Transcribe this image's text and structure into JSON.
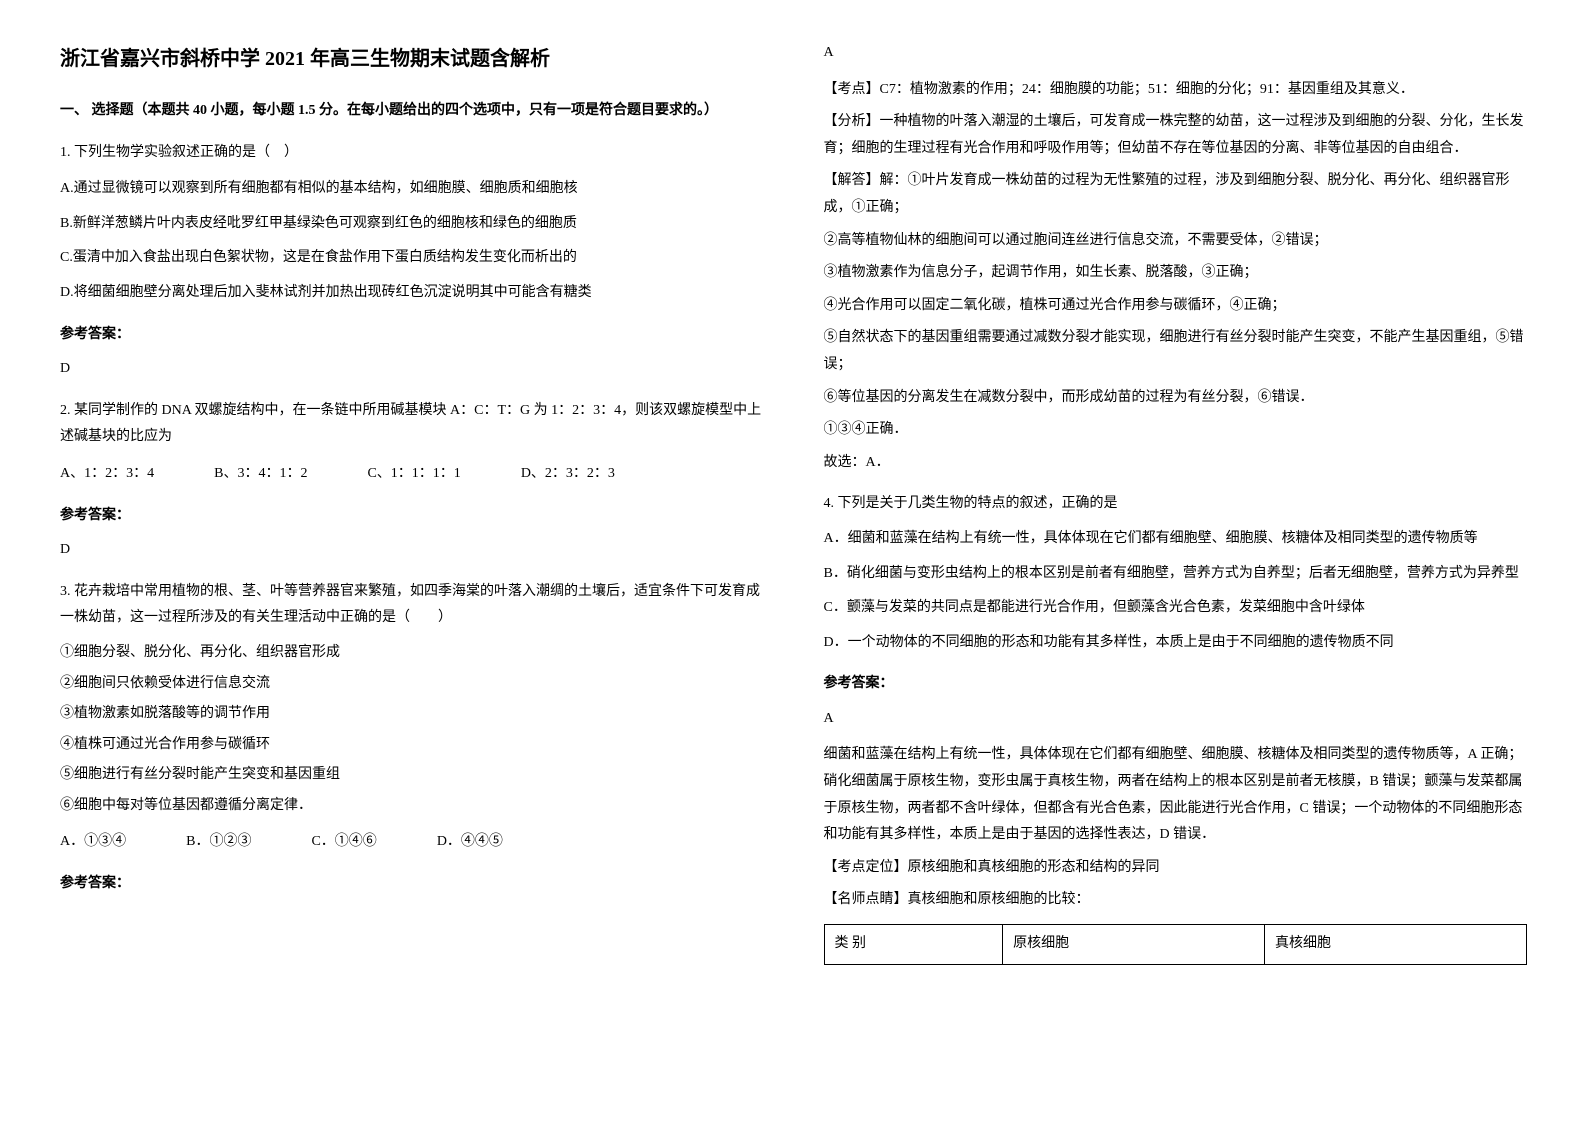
{
  "title": "浙江省嘉兴市斜桥中学 2021 年高三生物期末试题含解析",
  "sectionHeader": "一、 选择题（本题共 40 小题，每小题 1.5 分。在每小题给出的四个选项中，只有一项是符合题目要求的。）",
  "q1": {
    "stem": "1. 下列生物学实验叙述正确的是（　）",
    "optA": "A.通过显微镜可以观察到所有细胞都有相似的基本结构，如细胞膜、细胞质和细胞核",
    "optB": "B.新鲜洋葱鳞片叶内表皮经吡罗红甲基绿染色可观察到红色的细胞核和绿色的细胞质",
    "optC": "C.蛋清中加入食盐出现白色絮状物，这是在食盐作用下蛋白质结构发生变化而析出的",
    "optD": "D.将细菌细胞壁分离处理后加入斐林试剂并加热出现砖红色沉淀说明其中可能含有糖类",
    "answerLabel": "参考答案：",
    "answer": "D"
  },
  "q2": {
    "stem": "2. 某同学制作的 DNA 双螺旋结构中，在一条链中所用碱基模块 A：C：T：G 为 1：2：3：4，则该双螺旋模型中上述碱基块的比应为",
    "optA": "A、1：2：3：4",
    "optB": "B、3：4：1：2",
    "optC": "C、1：1：1：1",
    "optD": "D、2：3：2：3",
    "answerLabel": "参考答案：",
    "answer": "D"
  },
  "q3": {
    "stem": "3. 花卉栽培中常用植物的根、茎、叶等营养器官来繁殖，如四季海棠的叶落入潮绸的土壤后，适宜条件下可发育成一株幼苗，这一过程所涉及的有关生理活动中正确的是（　　）",
    "item1": "①细胞分裂、脱分化、再分化、组织器官形成",
    "item2": "②细胞间只依赖受体进行信息交流",
    "item3": "③植物激素如脱落酸等的调节作用",
    "item4": "④植株可通过光合作用参与碳循环",
    "item5": "⑤细胞进行有丝分裂时能产生突变和基因重组",
    "item6": "⑥细胞中每对等位基因都遵循分离定律．",
    "optA": "A．①③④",
    "optB": "B．①②③",
    "optC": "C．①④⑥",
    "optD": "D．④④⑤",
    "answerLabel": "参考答案：",
    "answer": "A",
    "kaodian": "【考点】C7：植物激素的作用；24：细胞膜的功能；51：细胞的分化；91：基因重组及其意义．",
    "fenxi": "【分析】一种植物的叶落入潮湿的土壤后，可发育成一株完整的幼苗，这一过程涉及到细胞的分裂、分化，生长发育；细胞的生理过程有光合作用和呼吸作用等；但幼苗不存在等位基因的分离、非等位基因的自由组合．",
    "jiedaLabel": "【解答】解：①叶片发育成一株幼苗的过程为无性繁殖的过程，涉及到细胞分裂、脱分化、再分化、组织器官形成，①正确；",
    "jieda2": "②高等植物仙林的细胞间可以通过胞间连丝进行信息交流，不需要受体，②错误；",
    "jieda3": "③植物激素作为信息分子，起调节作用，如生长素、脱落酸，③正确；",
    "jieda4": "④光合作用可以固定二氧化碳，植株可通过光合作用参与碳循环，④正确；",
    "jieda5": "⑤自然状态下的基因重组需要通过减数分裂才能实现，细胞进行有丝分裂时能产生突变，不能产生基因重组，⑤错误；",
    "jieda6": "⑥等位基因的分离发生在减数分裂中，而形成幼苗的过程为有丝分裂，⑥错误．",
    "jieda7": "①③④正确．",
    "jieda8": "故选：A．"
  },
  "q4": {
    "stem": "4. 下列是关于几类生物的特点的叙述，正确的是",
    "optA": "A．细菌和蓝藻在结构上有统一性，具体体现在它们都有细胞壁、细胞膜、核糖体及相同类型的遗传物质等",
    "optB": "B．硝化细菌与变形虫结构上的根本区别是前者有细胞壁，营养方式为自养型；后者无细胞壁，营养方式为异养型",
    "optC": "C．颤藻与发菜的共同点是都能进行光合作用，但颤藻含光合色素，发菜细胞中含叶绿体",
    "optD": "D．一个动物体的不同细胞的形态和功能有其多样性，本质上是由于不同细胞的遗传物质不同",
    "answerLabel": "参考答案：",
    "answer": "A",
    "explain": "细菌和蓝藻在结构上有统一性，具体体现在它们都有细胞壁、细胞膜、核糖体及相同类型的遗传物质等，A 正确；硝化细菌属于原核生物，变形虫属于真核生物，两者在结构上的根本区别是前者无核膜，B 错误；颤藻与发菜都属于原核生物，两者都不含叶绿体，但都含有光合色素，因此能进行光合作用，C 错误；一个动物体的不同细胞形态和功能有其多样性，本质上是由于基因的选择性表达，D 错误．",
    "kaodian": "【考点定位】原核细胞和真核细胞的形态和结构的异同",
    "mingshi": "【名师点睛】真核细胞和原核细胞的比较："
  },
  "table": {
    "col1": "类 别",
    "col2": "原核细胞",
    "col3": "真核细胞"
  }
}
